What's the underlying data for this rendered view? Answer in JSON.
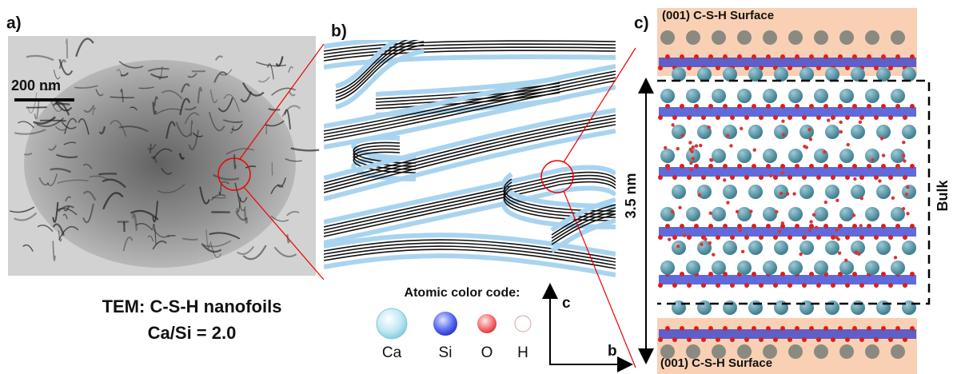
{
  "panels": [
    {
      "label": "a)",
      "scale_bar": "200 nm",
      "caption": [
        "TEM: C-S-H nanofoils",
        "Ca/Si = 2.0"
      ]
    },
    {
      "label": "b)",
      "legend": {
        "title": "Atomic color code:",
        "atoms": [
          "Ca",
          "Si",
          "O",
          "H"
        ]
      },
      "axes": [
        "c",
        "b"
      ]
    },
    {
      "label": "c)",
      "top_surface": "(001) C-S-H Surface",
      "bottom_surface": "(001) C-S-H Surface",
      "thickness": "3.5 nm",
      "region": "Bulk"
    }
  ]
}
